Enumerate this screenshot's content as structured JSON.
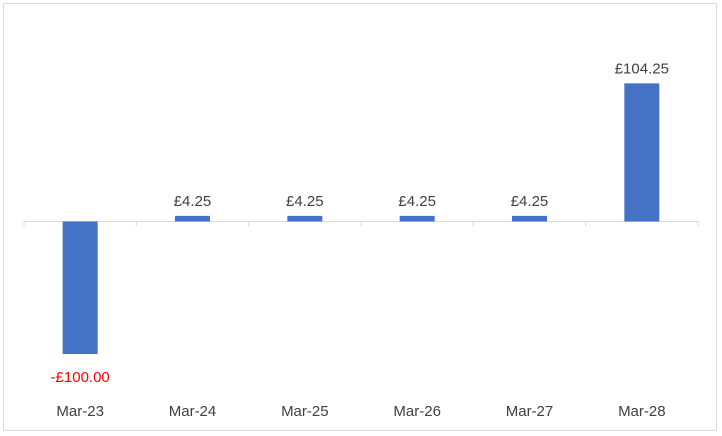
{
  "chart_data": {
    "type": "bar",
    "categories": [
      "Mar-23",
      "Mar-24",
      "Mar-25",
      "Mar-26",
      "Mar-27",
      "Mar-28"
    ],
    "values": [
      -100.0,
      4.25,
      4.25,
      4.25,
      4.25,
      104.25
    ],
    "data_labels": [
      "-£100.00",
      "£4.25",
      "£4.25",
      "£4.25",
      "£4.25",
      "£104.25"
    ],
    "title": "",
    "xlabel": "",
    "ylabel": "",
    "ylim": [
      -100,
      120
    ],
    "grid": false,
    "legend": "none",
    "colors": {
      "bar": "#4472c4",
      "label": "#404040",
      "negative_label": "#ff0000",
      "axis": "#d9d9d9",
      "border": "#d9d9d9"
    }
  }
}
